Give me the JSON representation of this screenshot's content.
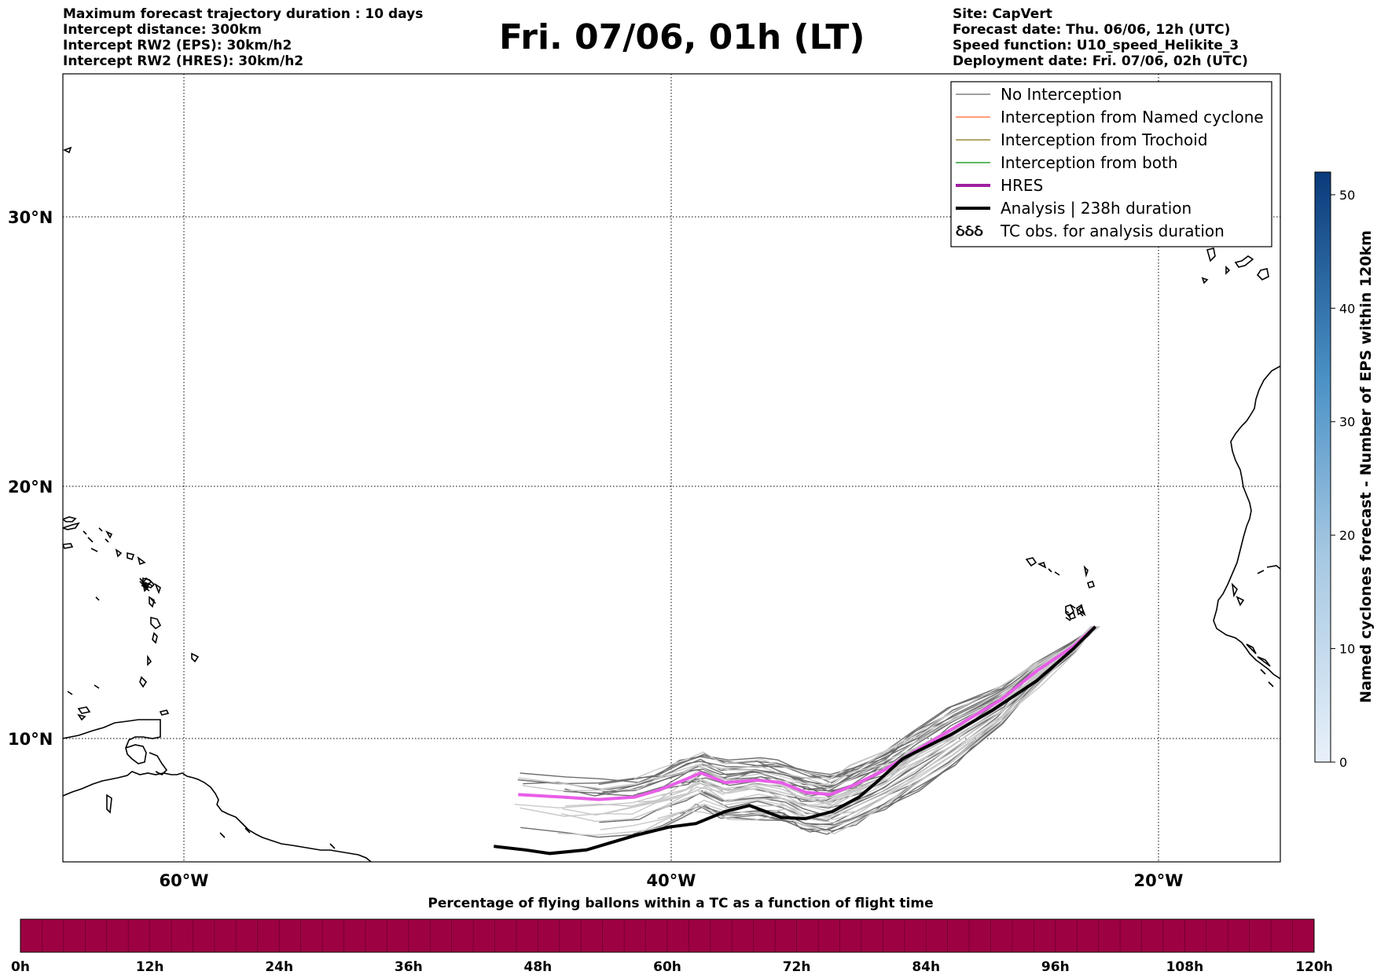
{
  "header_left": [
    "Maximum forecast trajectory duration : 10 days",
    "Intercept distance: 300km",
    "Intercept RW2 (EPS):  30km/h2",
    "Intercept RW2 (HRES): 30km/h2"
  ],
  "title": "Fri. 07/06, 01h (LT)",
  "header_right": [
    "Site: CapVert",
    "Forecast date: Thu. 06/06, 12h (UTC)",
    "Speed function: U10_speed_Helikite_3",
    "Deployment date: Fri. 07/06, 02h (UTC)"
  ],
  "map": {
    "lat_ticks": [
      "30°N",
      "20°N",
      "10°N"
    ],
    "lon_ticks": [
      "60°W",
      "40°W",
      "20°W"
    ],
    "extent": {
      "lon_min": -65,
      "lon_max": -15,
      "lat_min": 5.1,
      "lat_max": 35.6
    }
  },
  "legend": [
    {
      "label": "No Interception",
      "color": "#808080",
      "width": 1.5
    },
    {
      "label": "Interception from Named cyclone",
      "color": "#ff7f50",
      "width": 1.5
    },
    {
      "label": "Interception from Trochoid",
      "color": "#9a8a3a",
      "width": 1.5
    },
    {
      "label": "Interception from both",
      "color": "#2ca02c",
      "width": 1.5
    },
    {
      "label": "HRES",
      "color": "#a020a0",
      "width": 4
    },
    {
      "label": "Analysis | 238h duration",
      "color": "#000000",
      "width": 4
    },
    {
      "label": "TC obs. for analysis duration",
      "icon": "cyclone-symbols-icon",
      "symbols": "ઠઠઠ"
    }
  ],
  "colorbar_right": {
    "label": "Named cyclones forecast - Number of EPS within 120km",
    "ticks": [
      "0",
      "10",
      "20",
      "30",
      "40",
      "50"
    ],
    "min": 0,
    "max": 52,
    "color_low": "#e8f0fa",
    "color_high": "#0a3a7a"
  },
  "colorbar_bottom": {
    "title": "Percentage of flying ballons within a TC as a function of flight time",
    "ticks": [
      "0h",
      "12h",
      "24h",
      "36h",
      "48h",
      "60h",
      "72h",
      "84h",
      "96h",
      "108h",
      "120h"
    ],
    "fill_color": "#9e0142"
  },
  "tracks": {
    "hres": [
      [
        -22.6,
        14.8
      ],
      [
        -23.5,
        14.0
      ],
      [
        -25,
        13
      ],
      [
        -26.5,
        11.8
      ],
      [
        -28.5,
        10.6
      ],
      [
        -30,
        9.7
      ],
      [
        -31.3,
        8.9
      ],
      [
        -32.5,
        8.3
      ],
      [
        -33.5,
        7.9
      ],
      [
        -34.5,
        8.0
      ],
      [
        -35.5,
        8.4
      ],
      [
        -36.5,
        8.5
      ],
      [
        -37.8,
        8.4
      ],
      [
        -38.8,
        8.8
      ],
      [
        -39.5,
        8.5
      ],
      [
        -40.5,
        8.1
      ],
      [
        -41.5,
        7.8
      ],
      [
        -43,
        7.7
      ],
      [
        -44.5,
        7.8
      ],
      [
        -46.3,
        7.9
      ]
    ],
    "analysis": [
      [
        -22.6,
        14.8
      ],
      [
        -23.5,
        13.9
      ],
      [
        -25,
        12.6
      ],
      [
        -26.8,
        11.4
      ],
      [
        -28.5,
        10.4
      ],
      [
        -30.5,
        9.4
      ],
      [
        -31.6,
        8.4
      ],
      [
        -32.3,
        7.8
      ],
      [
        -33.4,
        7.2
      ],
      [
        -34.5,
        6.9
      ],
      [
        -35.5,
        6.95
      ],
      [
        -36.8,
        7.45
      ],
      [
        -37.8,
        7.2
      ],
      [
        -39,
        6.7
      ],
      [
        -40.1,
        6.55
      ],
      [
        -41.5,
        6.2
      ],
      [
        -42.5,
        5.9
      ],
      [
        -43.5,
        5.6
      ],
      [
        -45,
        5.45
      ],
      [
        -46,
        5.6
      ],
      [
        -47.3,
        5.75
      ]
    ]
  }
}
